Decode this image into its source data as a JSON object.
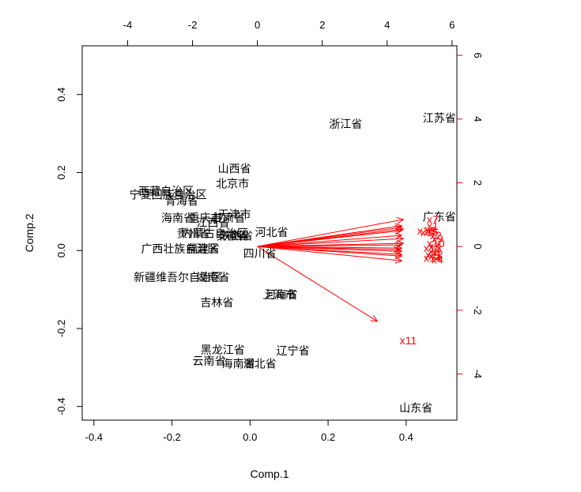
{
  "chart_data": {
    "type": "scatter",
    "subtype": "biplot",
    "xlabel": "Comp.1",
    "ylabel": "Comp.2",
    "xlim": [
      -0.43,
      0.53
    ],
    "ylim": [
      -0.435,
      0.525
    ],
    "xticks": [
      "-0.4",
      "-0.2",
      "0.0",
      "0.2",
      "0.4"
    ],
    "yticks": [
      "-0.4",
      "-0.2",
      "0.0",
      "0.2",
      "0.4"
    ],
    "top_axis": {
      "lim": [
        -5.4,
        6.15
      ],
      "ticks": [
        "-4",
        "-2",
        "0",
        "2",
        "4",
        "6"
      ]
    },
    "right_axis": {
      "lim": [
        -5.45,
        6.3
      ],
      "ticks": [
        "-4",
        "-2",
        "0",
        "2",
        "4",
        "6"
      ],
      "color": "#ff0000"
    },
    "grid": false,
    "point_color": "#000000",
    "arrow_color": "#ff0000",
    "points": [
      {
        "label": "江苏省",
        "x": 0.485,
        "y": 0.34
      },
      {
        "label": "浙江省",
        "x": 0.245,
        "y": 0.325
      },
      {
        "label": "山西省",
        "x": -0.04,
        "y": 0.21
      },
      {
        "label": "北京市",
        "x": -0.045,
        "y": 0.172
      },
      {
        "label": "西藏自治区",
        "x": -0.215,
        "y": 0.152
      },
      {
        "label": "宁夏回族自治区",
        "x": -0.21,
        "y": 0.143
      },
      {
        "label": "青海省",
        "x": -0.175,
        "y": 0.127
      },
      {
        "label": "广东省",
        "x": 0.485,
        "y": 0.087
      },
      {
        "label": "天津市",
        "x": -0.04,
        "y": 0.093
      },
      {
        "label": "海南省",
        "x": -0.185,
        "y": 0.083
      },
      {
        "label": "重庆市",
        "x": -0.115,
        "y": 0.083
      },
      {
        "label": "甘肃省",
        "x": -0.055,
        "y": 0.083
      },
      {
        "label": "江西省",
        "x": -0.095,
        "y": 0.071
      },
      {
        "label": "内蒙古自治区",
        "x": -0.09,
        "y": 0.044
      },
      {
        "label": "贵州省",
        "x": -0.145,
        "y": 0.044
      },
      {
        "label": "安徽省",
        "x": -0.045,
        "y": 0.038
      },
      {
        "label": "河北省",
        "x": 0.055,
        "y": 0.047
      },
      {
        "label": "陕西省",
        "x": -0.035,
        "y": 0.038
      },
      {
        "label": "广西壮族自治区",
        "x": -0.18,
        "y": 0.005
      },
      {
        "label": "福建省",
        "x": -0.12,
        "y": 0.005
      },
      {
        "label": "四川省",
        "x": 0.025,
        "y": -0.008
      },
      {
        "label": "新疆维吾尔自治区",
        "x": -0.185,
        "y": -0.068
      },
      {
        "label": "湖南省",
        "x": -0.095,
        "y": -0.068
      },
      {
        "label": "河南省",
        "x": 0.08,
        "y": -0.113
      },
      {
        "label": "上海市",
        "x": 0.075,
        "y": -0.113
      },
      {
        "label": "吉林省",
        "x": -0.085,
        "y": -0.133
      },
      {
        "label": "黑龙江省",
        "x": -0.07,
        "y": -0.255
      },
      {
        "label": "辽宁省",
        "x": 0.11,
        "y": -0.257
      },
      {
        "label": "云南省",
        "x": -0.105,
        "y": -0.283
      },
      {
        "label": "海南省",
        "x": -0.03,
        "y": -0.29
      },
      {
        "label": "湖北省",
        "x": 0.025,
        "y": -0.29
      },
      {
        "label": "山东省",
        "x": 0.425,
        "y": -0.404
      }
    ],
    "loadings": [
      {
        "label": "x1",
        "x": 4.45,
        "y": 0.65
      },
      {
        "label": "x2",
        "x": 4.45,
        "y": 0.35
      },
      {
        "label": "x3",
        "x": 4.45,
        "y": 0.05
      },
      {
        "label": "x4",
        "x": 4.4,
        "y": -0.1
      },
      {
        "label": "x5",
        "x": 4.45,
        "y": -0.3
      },
      {
        "label": "x6",
        "x": 4.45,
        "y": 0.5
      },
      {
        "label": "x7",
        "x": 4.5,
        "y": 0.85
      },
      {
        "label": "x8",
        "x": 4.45,
        "y": -0.15
      },
      {
        "label": "x9",
        "x": 4.5,
        "y": 0.25
      },
      {
        "label": "x10",
        "x": 4.5,
        "y": 0.1
      },
      {
        "label": "x11",
        "x": 3.7,
        "y": -2.35
      },
      {
        "label": "x12",
        "x": 4.45,
        "y": -0.25
      },
      {
        "label": "x13",
        "x": 4.45,
        "y": -0.05
      },
      {
        "label": "x14",
        "x": 4.45,
        "y": -0.45
      },
      {
        "label": "x15",
        "x": 4.45,
        "y": 0.6
      },
      {
        "label": "x16",
        "x": 4.5,
        "y": 0.55
      }
    ],
    "loading_label_positions": [
      {
        "label": "x7",
        "x": 5.4,
        "y": 0.85
      },
      {
        "label": "x1",
        "x": 5.4,
        "y": 0.65
      },
      {
        "label": "x6",
        "x": 5.35,
        "y": 0.5
      },
      {
        "label": "x16",
        "x": 5.2,
        "y": 0.5
      },
      {
        "label": "x15",
        "x": 5.3,
        "y": 0.45
      },
      {
        "label": "x9",
        "x": 5.55,
        "y": 0.25
      },
      {
        "label": "x10",
        "x": 5.5,
        "y": 0.1
      },
      {
        "label": "x3",
        "x": 5.45,
        "y": 0.0
      },
      {
        "label": "x13",
        "x": 5.4,
        "y": -0.05
      },
      {
        "label": "x8",
        "x": 5.45,
        "y": -0.15
      },
      {
        "label": "x12",
        "x": 5.45,
        "y": -0.25
      },
      {
        "label": "x5",
        "x": 5.45,
        "y": -0.3
      },
      {
        "label": "x14",
        "x": 5.4,
        "y": -0.35
      },
      {
        "label": "x4",
        "x": 5.55,
        "y": -0.4
      },
      {
        "label": "x2",
        "x": 5.5,
        "y": 0.35
      },
      {
        "label": "x11",
        "x": 4.65,
        "y": -2.95
      }
    ]
  }
}
